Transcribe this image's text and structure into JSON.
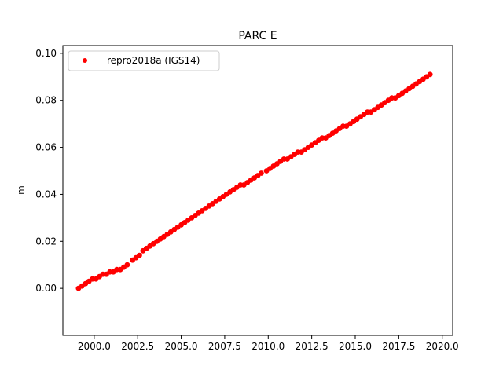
{
  "chart_data": {
    "type": "scatter",
    "title": "PARC E",
    "xlabel": "",
    "ylabel": "m",
    "xlim": [
      1998.2,
      2020.6
    ],
    "ylim": [
      -0.02,
      0.1033
    ],
    "xticks": [
      2000.0,
      2002.5,
      2005.0,
      2007.5,
      2010.0,
      2012.5,
      2015.0,
      2017.5,
      2020.0
    ],
    "xtick_labels": [
      "2000.0",
      "2002.5",
      "2005.0",
      "2007.5",
      "2010.0",
      "2012.5",
      "2015.0",
      "2017.5",
      "2020.0"
    ],
    "yticks": [
      0.0,
      0.02,
      0.04,
      0.06,
      0.08,
      0.1
    ],
    "ytick_labels": [
      "0.00",
      "0.02",
      "0.04",
      "0.06",
      "0.08",
      "0.10"
    ],
    "grid": false,
    "legend_position": "top-left",
    "series": [
      {
        "name": "repro2018a (IGS14)",
        "color": "#ff0000",
        "marker": "circle",
        "x": [
          1999.1,
          1999.3,
          1999.5,
          1999.7,
          1999.9,
          2000.1,
          2000.3,
          2000.5,
          2000.7,
          2000.9,
          2001.1,
          2001.3,
          2001.5,
          2001.7,
          2001.9,
          2002.2,
          2002.4,
          2002.6,
          2002.8,
          2003.0,
          2003.2,
          2003.4,
          2003.6,
          2003.8,
          2004.0,
          2004.2,
          2004.4,
          2004.6,
          2004.8,
          2005.0,
          2005.2,
          2005.4,
          2005.6,
          2005.8,
          2006.0,
          2006.2,
          2006.4,
          2006.6,
          2006.8,
          2007.0,
          2007.2,
          2007.4,
          2007.6,
          2007.8,
          2008.0,
          2008.2,
          2008.4,
          2008.6,
          2008.8,
          2009.0,
          2009.2,
          2009.4,
          2009.6,
          2009.9,
          2010.1,
          2010.3,
          2010.5,
          2010.7,
          2010.9,
          2011.1,
          2011.3,
          2011.5,
          2011.7,
          2011.9,
          2012.1,
          2012.3,
          2012.5,
          2012.7,
          2012.9,
          2013.1,
          2013.3,
          2013.5,
          2013.7,
          2013.9,
          2014.1,
          2014.3,
          2014.5,
          2014.7,
          2014.9,
          2015.1,
          2015.3,
          2015.5,
          2015.7,
          2015.9,
          2016.1,
          2016.3,
          2016.5,
          2016.7,
          2016.9,
          2017.1,
          2017.3,
          2017.5,
          2017.7,
          2017.9,
          2018.1,
          2018.3,
          2018.5,
          2018.7,
          2018.9,
          2019.1,
          2019.3
        ],
        "y": [
          0.0,
          0.001,
          0.002,
          0.003,
          0.004,
          0.004,
          0.005,
          0.006,
          0.006,
          0.007,
          0.007,
          0.008,
          0.008,
          0.009,
          0.01,
          0.012,
          0.013,
          0.014,
          0.016,
          0.017,
          0.018,
          0.019,
          0.02,
          0.021,
          0.022,
          0.023,
          0.024,
          0.025,
          0.026,
          0.027,
          0.028,
          0.029,
          0.03,
          0.031,
          0.032,
          0.033,
          0.034,
          0.035,
          0.036,
          0.037,
          0.038,
          0.039,
          0.04,
          0.041,
          0.042,
          0.043,
          0.044,
          0.044,
          0.045,
          0.046,
          0.047,
          0.048,
          0.049,
          0.05,
          0.051,
          0.052,
          0.053,
          0.054,
          0.055,
          0.055,
          0.056,
          0.057,
          0.058,
          0.058,
          0.059,
          0.06,
          0.061,
          0.062,
          0.063,
          0.064,
          0.064,
          0.065,
          0.066,
          0.067,
          0.068,
          0.069,
          0.069,
          0.07,
          0.071,
          0.072,
          0.073,
          0.074,
          0.075,
          0.075,
          0.076,
          0.077,
          0.078,
          0.079,
          0.08,
          0.081,
          0.081,
          0.082,
          0.083,
          0.084,
          0.085,
          0.086,
          0.087,
          0.088,
          0.089,
          0.09,
          0.091
        ]
      }
    ]
  }
}
